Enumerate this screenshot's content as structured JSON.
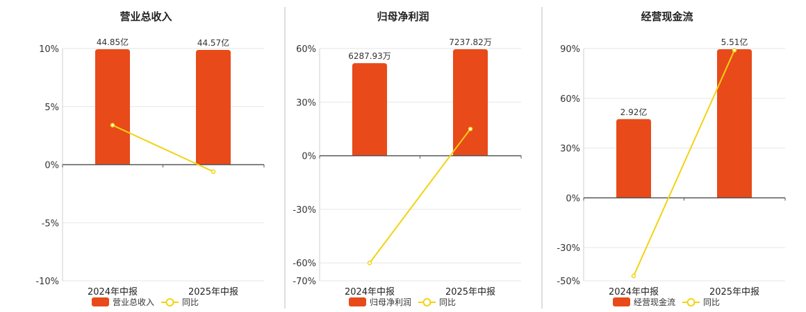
{
  "colors": {
    "bar": "#e84a1a",
    "line": "#f2d311",
    "grid": "#e6e6e6",
    "axis": "#555555",
    "divider": "#bdbdbd"
  },
  "chart_data": [
    {
      "type": "bar",
      "title": "营业总收入",
      "categories": [
        "2024年中报",
        "2025年中报"
      ],
      "bar_series_name": "营业总收入",
      "bar_values": [
        44.85,
        44.57
      ],
      "bar_labels": [
        "44.85亿",
        "44.57亿"
      ],
      "line_series_name": "同比",
      "line_values": [
        3.4,
        -0.6
      ],
      "ylim": [
        -10,
        10
      ],
      "yticks": [
        10,
        5,
        0,
        -5,
        -10
      ],
      "ytick_labels": [
        "10%",
        "5%",
        "0%",
        "-5%",
        "-10%"
      ]
    },
    {
      "type": "bar",
      "title": "归母净利润",
      "categories": [
        "2024年中报",
        "2025年中报"
      ],
      "bar_series_name": "归母净利润",
      "bar_values": [
        6287.93,
        7237.82
      ],
      "bar_labels": [
        "6287.93万",
        "7237.82万"
      ],
      "line_series_name": "同比",
      "line_values": [
        -60,
        15
      ],
      "ylim": [
        -70,
        60
      ],
      "yticks": [
        60,
        30,
        0,
        -30,
        -60,
        -70
      ],
      "ytick_labels": [
        "60%",
        "30%",
        "0%",
        "-30%",
        "-60%",
        "-70%"
      ]
    },
    {
      "type": "bar",
      "title": "经营现金流",
      "categories": [
        "2024年中报",
        "2025年中报"
      ],
      "bar_series_name": "经营现金流",
      "bar_values": [
        2.92,
        5.51
      ],
      "bar_labels": [
        "2.92亿",
        "5.51亿"
      ],
      "line_series_name": "同比",
      "line_values": [
        -47,
        89
      ],
      "ylim": [
        -50,
        90
      ],
      "yticks": [
        90,
        60,
        30,
        0,
        -30,
        -50
      ],
      "ytick_labels": [
        "90%",
        "60%",
        "30%",
        "0%",
        "-30%",
        "-50%"
      ]
    }
  ]
}
